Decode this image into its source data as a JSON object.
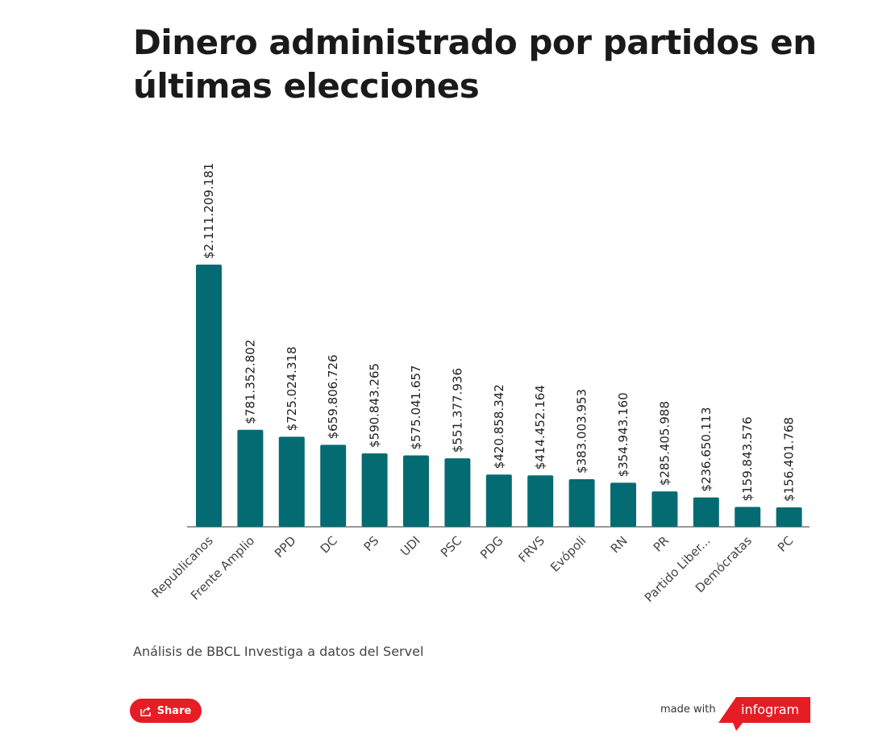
{
  "title": "Dinero administrado por partidos en últimas elecciones",
  "caption": "Análisis de BBCL Investiga a datos del Servel",
  "footer": {
    "share_label": "Share",
    "made_with": "made with",
    "brand": "infogram"
  },
  "colors": {
    "bar": "#056b72",
    "axis": "#777777",
    "share": "#e61d24",
    "brand": "#e61d24"
  },
  "icons": {
    "share": "share-icon"
  },
  "chart_data": {
    "type": "bar",
    "categories": [
      "Republicanos",
      "Frente Amplio",
      "PPD",
      "DC",
      "PS",
      "UDI",
      "PSC",
      "PDG",
      "FRVS",
      "Evópoli",
      "RN",
      "PR",
      "Partido Liber...",
      "Demócratas",
      "PC"
    ],
    "values": [
      2111209181,
      781352802,
      725024318,
      659806726,
      590843265,
      575041657,
      551377936,
      420858342,
      414452164,
      383003953,
      354943160,
      285405988,
      236650113,
      159843576,
      156401768
    ],
    "value_labels": [
      "$2.111.209.181",
      "$781.352.802",
      "$725.024.318",
      "$659.806.726",
      "$590.843.265",
      "$575.041.657",
      "$551.377.936",
      "$420.858.342",
      "$414.452.164",
      "$383.003.953",
      "$354.943.160",
      "$285.405.988",
      "$236.650.113",
      "$159.843.576",
      "$156.401.768"
    ],
    "ylim": [
      0,
      2111209181
    ],
    "grid": false,
    "legend": "none"
  }
}
